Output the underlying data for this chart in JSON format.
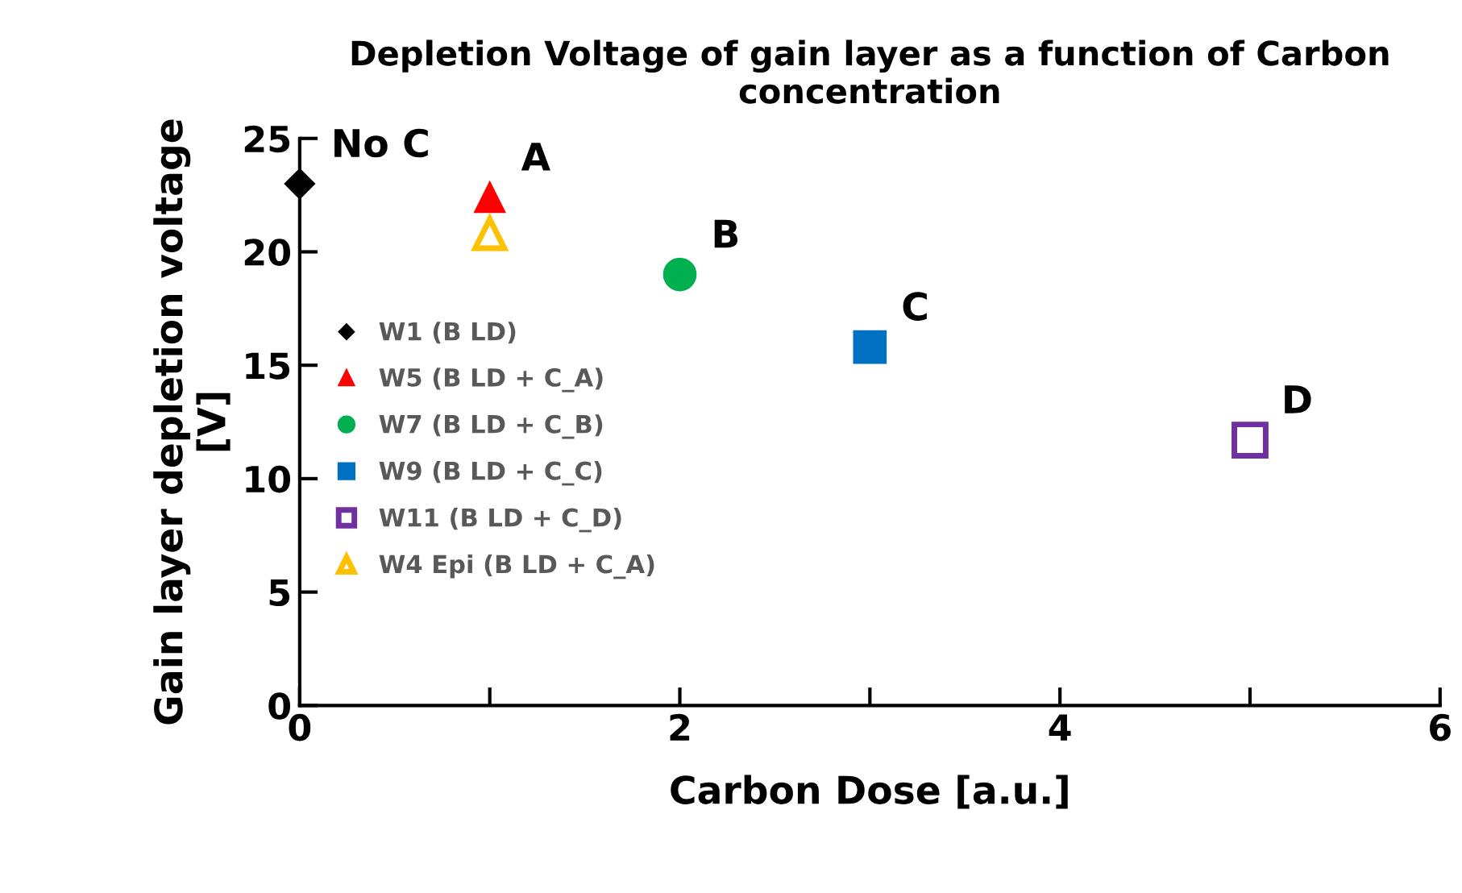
{
  "chart_data": {
    "type": "scatter",
    "title": "Depletion Voltage of gain layer as a function of Carbon concentration",
    "xlabel": "Carbon Dose [a.u.]",
    "ylabel": "Gain layer depletion voltage\n[V]",
    "xlim": [
      0,
      6
    ],
    "ylim": [
      0,
      25
    ],
    "xticks": [
      0,
      {
        "value": 1,
        "label": null
      },
      2,
      {
        "value": 3,
        "label": null
      },
      4,
      {
        "value": 5,
        "label": null
      },
      6
    ],
    "yticks": [
      0,
      5,
      10,
      15,
      20,
      25
    ],
    "grid": false,
    "legend": "left",
    "series": [
      {
        "name": "W1 (B LD)",
        "color": "#000000",
        "marker": "diamond",
        "x": [
          0
        ],
        "values": [
          23.0
        ]
      },
      {
        "name": "W5 (B LD + C_A)",
        "color": "#ff0000",
        "marker": "triangle",
        "x": [
          1
        ],
        "values": [
          22.4
        ]
      },
      {
        "name": "W7 (B LD + C_B)",
        "color": "#00b050",
        "marker": "circle",
        "x": [
          2
        ],
        "values": [
          19.0
        ]
      },
      {
        "name": "W9 (B LD + C_C)",
        "color": "#0070c0",
        "marker": "square",
        "x": [
          3
        ],
        "values": [
          15.8
        ]
      },
      {
        "name": "W11 (B LD + C_D)",
        "color": "#7030a0",
        "marker": "square",
        "x": [
          5
        ],
        "values": [
          11.7
        ]
      },
      {
        "name": "W4 Epi (B LD + C_A)",
        "color": "#ffc000",
        "marker": "triangle",
        "x": [
          1
        ],
        "values": [
          20.8
        ]
      }
    ],
    "annotations": [
      {
        "text": "No C",
        "x": 0,
        "y": 23.0
      },
      {
        "text": "A",
        "x": 1,
        "y": 22.4
      },
      {
        "text": "B",
        "x": 2,
        "y": 19.0
      },
      {
        "text": "C",
        "x": 3,
        "y": 15.8
      },
      {
        "text": "D",
        "x": 5,
        "y": 11.7
      }
    ]
  }
}
